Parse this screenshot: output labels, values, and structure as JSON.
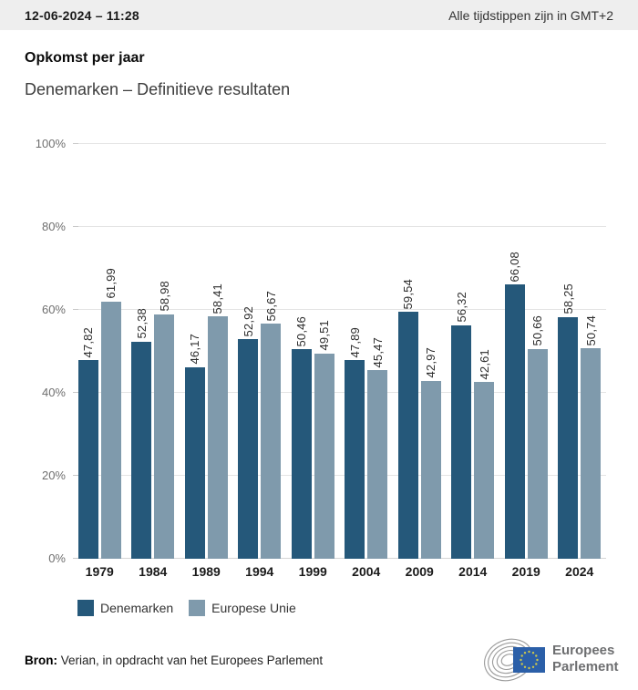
{
  "header": {
    "datetime": "12-06-2024 – 11:28",
    "timezone_note": "Alle tijdstippen zijn in GMT+2"
  },
  "titles": {
    "title": "Opkomst per jaar",
    "subtitle": "Denemarken – Definitieve resultaten"
  },
  "chart_data": {
    "type": "bar",
    "categories": [
      "1979",
      "1984",
      "1989",
      "1994",
      "1999",
      "2004",
      "2009",
      "2014",
      "2019",
      "2024"
    ],
    "series": [
      {
        "name": "Denemarken",
        "color": "#25587a",
        "values": [
          47.82,
          52.38,
          46.17,
          52.92,
          50.46,
          47.89,
          59.54,
          56.32,
          66.08,
          58.25
        ],
        "labels": [
          "47,82",
          "52,38",
          "46,17",
          "52,92",
          "50,46",
          "47,89",
          "59,54",
          "56,32",
          "66,08",
          "58,25"
        ]
      },
      {
        "name": "Europese Unie",
        "color": "#7f9aac",
        "values": [
          61.99,
          58.98,
          58.41,
          56.67,
          49.51,
          45.47,
          42.97,
          42.61,
          50.66,
          50.74
        ],
        "labels": [
          "61,99",
          "58,98",
          "58,41",
          "56,67",
          "49,51",
          "45,47",
          "42,97",
          "42,61",
          "50,66",
          "50,74"
        ]
      }
    ],
    "title": "Opkomst per jaar",
    "xlabel": "",
    "ylabel": "",
    "ylim": [
      0,
      100
    ],
    "yticks": [
      "0%",
      "20%",
      "40%",
      "60%",
      "80%",
      "100%"
    ],
    "grid": true,
    "legend_position": "bottom"
  },
  "footer": {
    "source_label": "Bron:",
    "source_text": " Verian, in opdracht van het Europees Parlement"
  },
  "logo": {
    "line1": "Europees",
    "line2": "Parlement"
  },
  "colors": {
    "series_dark": "#25587a",
    "series_light": "#7f9aac",
    "header_bg": "#eeeeee",
    "gridline": "#e4e4e4",
    "eu_flag_blue": "#2b5fa8",
    "eu_star_yellow": "#cfc94b"
  }
}
